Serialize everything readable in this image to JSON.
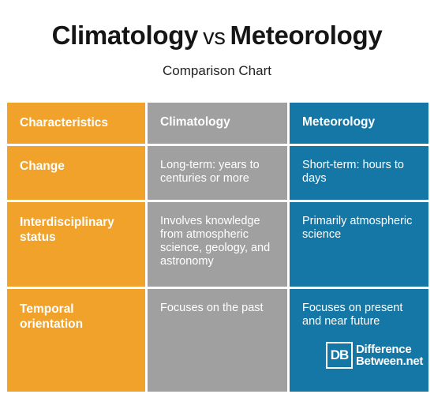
{
  "title": {
    "left": "Climatology",
    "vs": "vs",
    "right": "Meteorology"
  },
  "subtitle": "Comparison Chart",
  "table": {
    "headers": [
      "Characteristics",
      "Climatology",
      "Meteorology"
    ],
    "rows": [
      [
        "Change",
        "Long-term: years to centuries or more",
        "Short-term: hours to days"
      ],
      [
        "Interdisciplinary status",
        "Involves knowledge from atmospheric science, geology, and astronomy",
        "Primarily atmospheric science"
      ],
      [
        "Temporal orientation",
        "Focuses on the past",
        "Focuses on present and near future"
      ]
    ]
  },
  "colors": {
    "orange": "#f0a22b",
    "gray": "#a0a0a0",
    "blue": "#1577a6"
  },
  "logo": {
    "mark": "DB",
    "line1": "Difference",
    "line2": "Between.net"
  }
}
